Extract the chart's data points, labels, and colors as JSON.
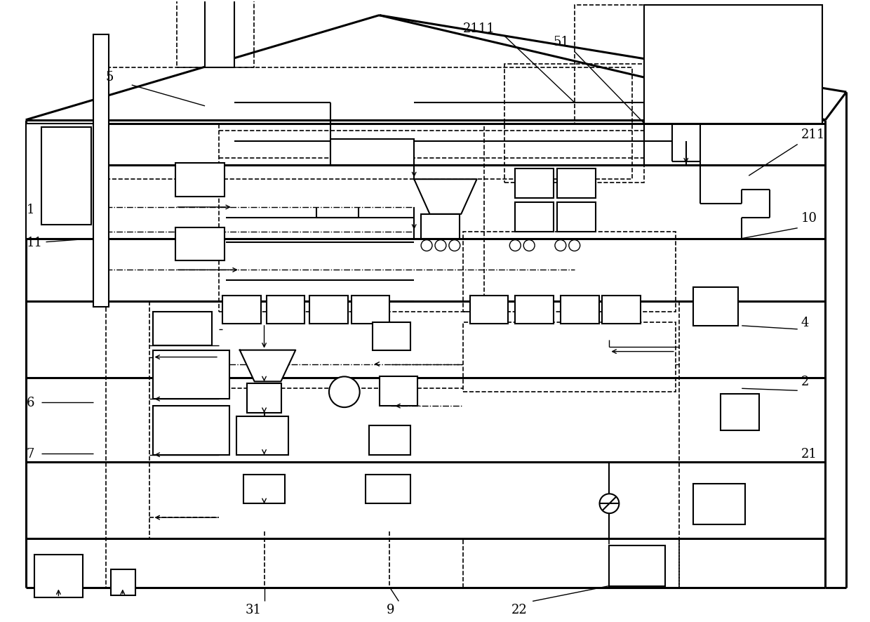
{
  "bg_color": "#ffffff",
  "lc": "#000000",
  "lw_thick": 2.2,
  "lw_med": 1.5,
  "lw_thin": 1.0,
  "lw_dash": 1.2
}
